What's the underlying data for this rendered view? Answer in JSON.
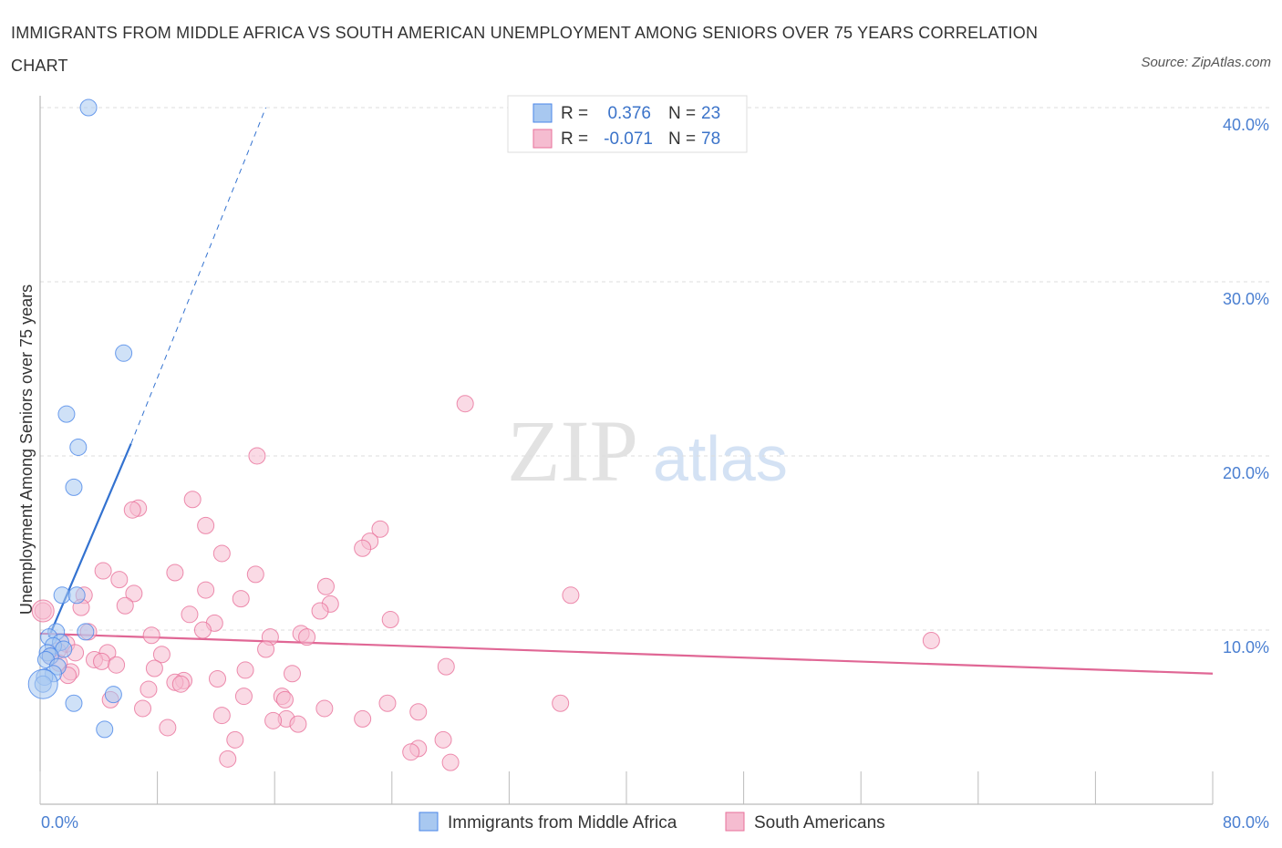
{
  "title": "IMMIGRANTS FROM MIDDLE AFRICA VS SOUTH AMERICAN UNEMPLOYMENT AMONG SENIORS OVER 75 YEARS CORRELATION CHART",
  "source": "Source: ZipAtlas.com",
  "watermark": {
    "zip": "ZIP",
    "atlas": "atlas"
  },
  "colors": {
    "blue": "#4a86e8",
    "blue_fill": "#a8c8f0",
    "blue_line": "#3372d0",
    "pink": "#e8719a",
    "pink_fill": "#f5bcd0",
    "pink_line": "#e06795",
    "grid": "#dddddd",
    "axis_text": "#4a7fd1"
  },
  "stats_legend": {
    "rows": [
      {
        "r_label": "R =",
        "r_value": "0.376",
        "n_label": "N =",
        "n_value": "23",
        "color": "blue"
      },
      {
        "r_label": "R =",
        "r_value": "-0.071",
        "n_label": "N =",
        "n_value": "78",
        "color": "pink"
      }
    ]
  },
  "bottom_legend": {
    "items": [
      {
        "label": "Immigrants from Middle Africa",
        "color": "blue"
      },
      {
        "label": "South Americans",
        "color": "pink"
      }
    ]
  },
  "chart_data": {
    "type": "scatter",
    "title": "IMMIGRANTS FROM MIDDLE AFRICA VS SOUTH AMERICAN UNEMPLOYMENT AMONG SENIORS OVER 75 YEARS CORRELATION CHART",
    "xlabel": "",
    "ylabel": "Unemployment Among Seniors over 75 years",
    "xlim": [
      0,
      80
    ],
    "ylim": [
      0,
      40
    ],
    "x_tick_labels": [
      "0.0%",
      "80.0%"
    ],
    "y_ticks": [
      10,
      20,
      30,
      40
    ],
    "y_tick_labels": [
      "10.0%",
      "20.0%",
      "30.0%",
      "40.0%"
    ],
    "grid": true,
    "series": [
      {
        "name": "Immigrants from Middle Africa",
        "color": "blue",
        "points": [
          [
            3.3,
            40.0
          ],
          [
            5.7,
            25.9
          ],
          [
            1.8,
            22.4
          ],
          [
            2.6,
            20.5
          ],
          [
            2.3,
            18.2
          ],
          [
            1.5,
            12.0
          ],
          [
            2.5,
            12.0
          ],
          [
            3.1,
            9.9
          ],
          [
            1.1,
            9.9
          ],
          [
            0.6,
            9.6
          ],
          [
            1.4,
            9.3
          ],
          [
            0.9,
            9.1
          ],
          [
            1.6,
            8.9
          ],
          [
            0.5,
            8.7
          ],
          [
            0.7,
            8.5
          ],
          [
            0.4,
            8.3
          ],
          [
            1.2,
            7.9
          ],
          [
            0.9,
            7.5
          ],
          [
            0.3,
            7.3
          ],
          [
            0.2,
            6.9
          ],
          [
            5.0,
            6.3
          ],
          [
            2.3,
            5.8
          ],
          [
            4.4,
            4.3
          ]
        ],
        "trend": {
          "x": [
            0.6,
            6.2
          ],
          "y": [
            9.6,
            20.7
          ],
          "dashed_to": [
            15.4,
            40.0
          ]
        }
      },
      {
        "name": "South Americans",
        "color": "pink",
        "points": [
          [
            29.0,
            23.0
          ],
          [
            14.8,
            20.0
          ],
          [
            6.7,
            17.0
          ],
          [
            6.3,
            16.9
          ],
          [
            10.4,
            17.5
          ],
          [
            11.3,
            16.0
          ],
          [
            23.2,
            15.8
          ],
          [
            22.5,
            15.1
          ],
          [
            22.0,
            14.7
          ],
          [
            12.4,
            14.4
          ],
          [
            4.3,
            13.4
          ],
          [
            9.2,
            13.3
          ],
          [
            14.7,
            13.2
          ],
          [
            5.4,
            12.9
          ],
          [
            19.5,
            12.5
          ],
          [
            11.3,
            12.3
          ],
          [
            6.4,
            12.1
          ],
          [
            3.0,
            12.0
          ],
          [
            36.2,
            12.0
          ],
          [
            13.7,
            11.8
          ],
          [
            19.8,
            11.5
          ],
          [
            5.8,
            11.4
          ],
          [
            2.8,
            11.3
          ],
          [
            0.2,
            11.1
          ],
          [
            19.1,
            11.1
          ],
          [
            10.2,
            10.9
          ],
          [
            23.9,
            10.6
          ],
          [
            11.9,
            10.4
          ],
          [
            11.1,
            10.0
          ],
          [
            3.3,
            9.9
          ],
          [
            17.8,
            9.8
          ],
          [
            7.6,
            9.7
          ],
          [
            18.2,
            9.6
          ],
          [
            15.7,
            9.6
          ],
          [
            60.8,
            9.4
          ],
          [
            1.8,
            9.2
          ],
          [
            15.4,
            8.9
          ],
          [
            1.2,
            8.8
          ],
          [
            2.4,
            8.7
          ],
          [
            4.6,
            8.7
          ],
          [
            8.3,
            8.6
          ],
          [
            0.7,
            8.5
          ],
          [
            3.7,
            8.3
          ],
          [
            4.2,
            8.2
          ],
          [
            1.3,
            8.1
          ],
          [
            5.2,
            8.0
          ],
          [
            27.7,
            7.9
          ],
          [
            7.8,
            7.8
          ],
          [
            2.1,
            7.6
          ],
          [
            14.0,
            7.7
          ],
          [
            17.2,
            7.5
          ],
          [
            1.9,
            7.4
          ],
          [
            12.1,
            7.2
          ],
          [
            9.8,
            7.1
          ],
          [
            9.2,
            7.0
          ],
          [
            9.6,
            6.9
          ],
          [
            7.4,
            6.6
          ],
          [
            13.9,
            6.2
          ],
          [
            16.5,
            6.2
          ],
          [
            16.7,
            6.0
          ],
          [
            4.8,
            6.0
          ],
          [
            35.5,
            5.8
          ],
          [
            23.7,
            5.8
          ],
          [
            7.0,
            5.5
          ],
          [
            19.4,
            5.5
          ],
          [
            25.8,
            5.3
          ],
          [
            12.4,
            5.1
          ],
          [
            16.8,
            4.9
          ],
          [
            15.9,
            4.8
          ],
          [
            22.0,
            4.9
          ],
          [
            17.6,
            4.6
          ],
          [
            8.7,
            4.4
          ],
          [
            13.3,
            3.7
          ],
          [
            27.5,
            3.7
          ],
          [
            25.8,
            3.2
          ],
          [
            25.3,
            3.0
          ],
          [
            12.8,
            2.6
          ],
          [
            28.0,
            2.4
          ]
        ],
        "trend": {
          "x": [
            0,
            80
          ],
          "y": [
            9.8,
            7.5
          ]
        }
      }
    ]
  }
}
